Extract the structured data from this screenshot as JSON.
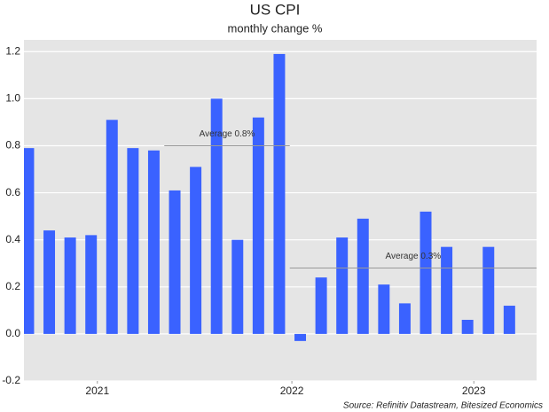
{
  "chart_data": {
    "type": "bar",
    "title": "US CPI",
    "subtitle": "monthly change %",
    "source": "Source: Refinitiv Datastream, Bitesized Economics",
    "x": [
      0,
      1,
      2,
      3,
      4,
      5,
      6,
      7,
      8,
      9,
      10,
      11,
      12,
      13,
      14,
      15,
      16,
      17,
      18,
      19,
      20,
      21,
      22,
      23
    ],
    "values": [
      0.79,
      0.44,
      0.41,
      0.42,
      0.91,
      0.79,
      0.78,
      0.61,
      0.71,
      1.0,
      0.4,
      0.92,
      1.19,
      -0.03,
      0.24,
      0.41,
      0.49,
      0.21,
      0.13,
      0.52,
      0.37,
      0.06,
      0.37,
      0.12
    ],
    "color": "#3a62ff",
    "xlim": [
      -0.21,
      24.3
    ],
    "xticks": [
      {
        "value": 3.3,
        "label": "2021"
      },
      {
        "value": 12.6,
        "label": "2022"
      },
      {
        "value": 21.3,
        "label": "2023"
      }
    ],
    "ylim": [
      -0.2,
      1.25
    ],
    "yticks": [
      {
        "value": -0.2,
        "label": "-0.2"
      },
      {
        "value": 0,
        "label": "0.0"
      },
      {
        "value": 0.2,
        "label": "0.2"
      },
      {
        "value": 0.4,
        "label": "0.4"
      },
      {
        "value": 0.6,
        "label": "0.6"
      },
      {
        "value": 0.8,
        "label": "0.8"
      },
      {
        "value": 1.0,
        "label": "1.0"
      },
      {
        "value": 1.2,
        "label": "1.2"
      }
    ],
    "grid": true,
    "annotations": [
      {
        "text": "Average 0.8%",
        "value": 0.8,
        "x": [
          6.5,
          12.5
        ]
      },
      {
        "text": "Average 0.3%",
        "value": 0.28,
        "x": [
          12.5,
          24.3
        ]
      }
    ]
  }
}
